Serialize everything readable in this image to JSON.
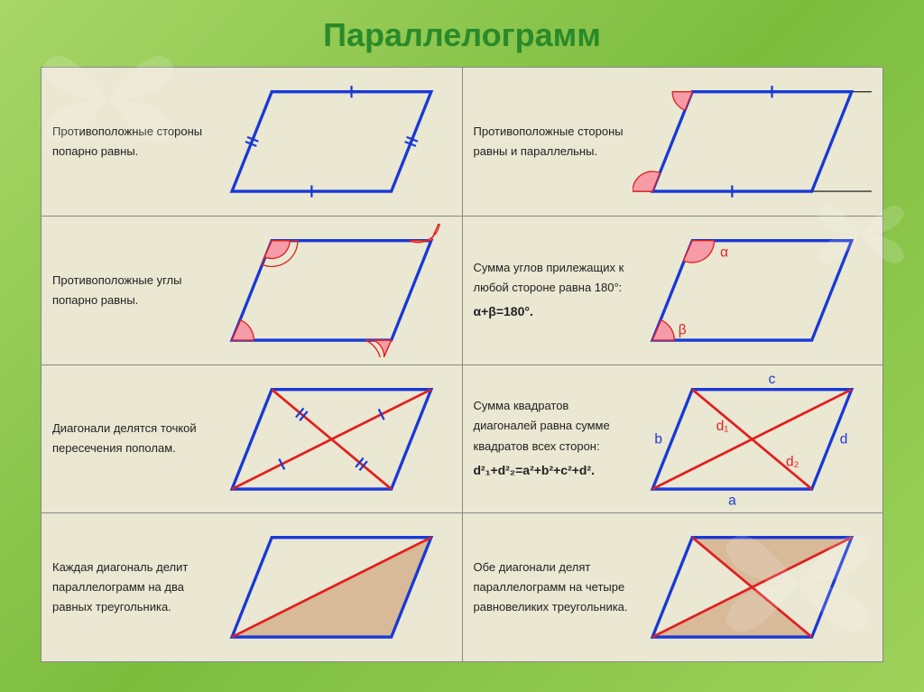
{
  "title": "Параллелограмм",
  "colors": {
    "shape_stroke": "#1838d8",
    "diagonal_stroke": "#e02020",
    "angle_fill": "#f59ca8",
    "fill_tri": "#d8b998",
    "cell_bg": "#eae7d2",
    "title_color": "#2a8a2a",
    "text_color": "#222",
    "label_red": "#e02020",
    "label_blue": "#1838d8",
    "tick_color": "#1838d8"
  },
  "cells": [
    {
      "text": "Противоположные стороны попарно равны.",
      "diagram": "sides_equal"
    },
    {
      "text": "Противоположные стороны равны и параллельны.",
      "diagram": "sides_parallel"
    },
    {
      "text": "Противоположные углы попарно равны.",
      "diagram": "opp_angles"
    },
    {
      "text": "Сумма углов прилежащих к любой стороне равна 180°:",
      "formula": "α+β=180°.",
      "diagram": "adj_angles",
      "labels": {
        "alpha": "α",
        "beta": "β"
      }
    },
    {
      "text": "Диагонали делятся точкой пересечения пополам.",
      "diagram": "diag_bisect"
    },
    {
      "text": "Сумма квадратов диагоналей равна сумме квадратов всех сторон:",
      "formula": "d²₁+d²₂=a²+b²+c²+d².",
      "diagram": "diag_squares",
      "labels": {
        "a": "a",
        "b": "b",
        "c": "c",
        "d": "d",
        "d1": "d₁",
        "d2": "d₂"
      }
    },
    {
      "text": "Каждая диагональ делит параллелограмм на два равных треугольника.",
      "diagram": "one_diag"
    },
    {
      "text": "Обе диагонали делят параллелограмм на четыре равновеликих треугольника.",
      "diagram": "two_diag"
    }
  ]
}
